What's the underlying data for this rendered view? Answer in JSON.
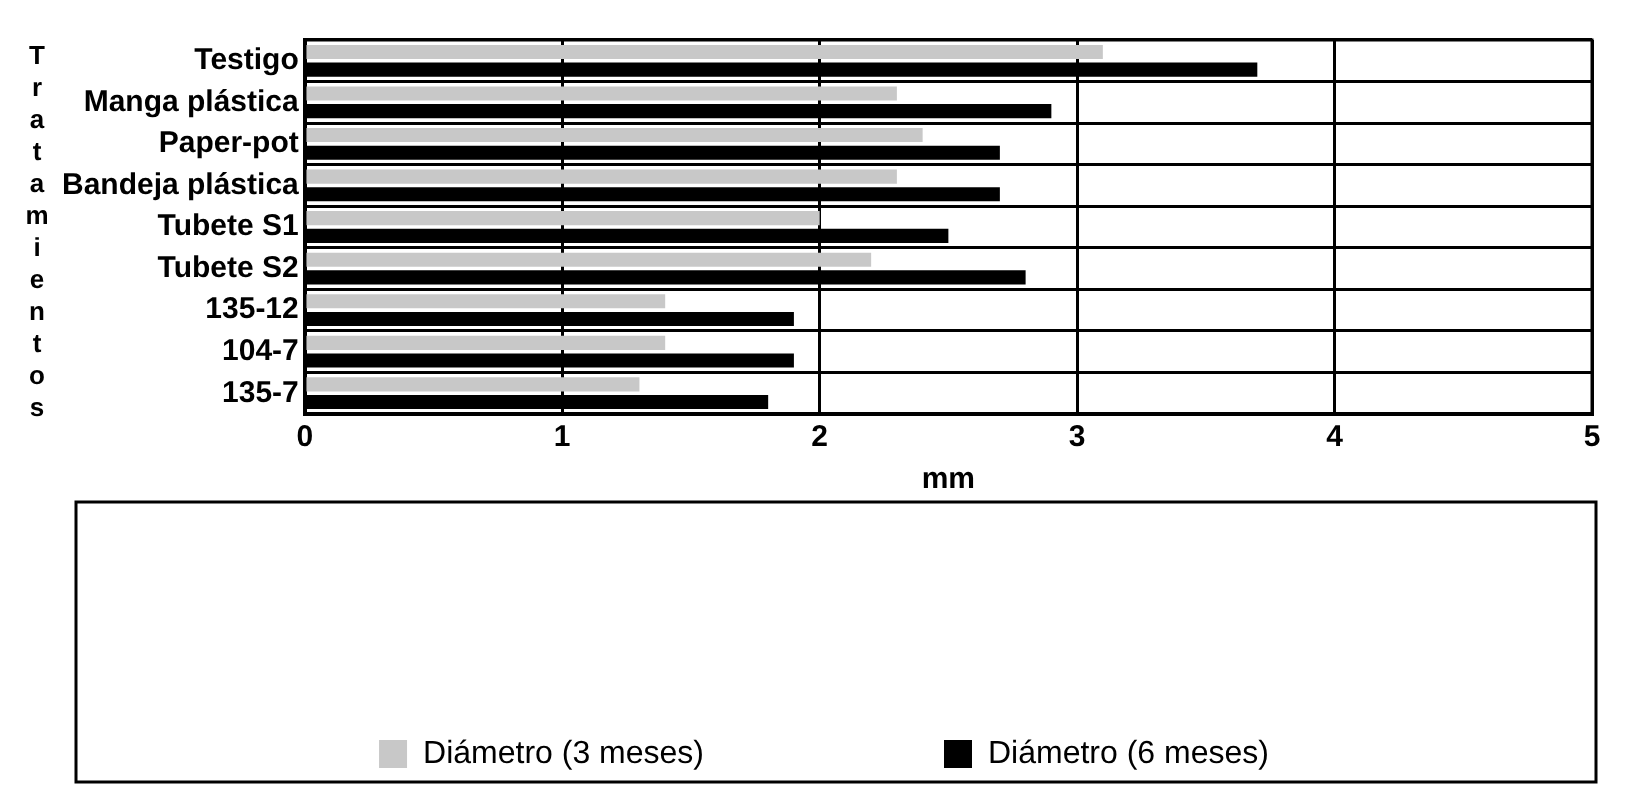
{
  "chart_data": {
    "type": "bar",
    "orientation": "horizontal",
    "xlabel": "mm",
    "ylabel": "Tratamientos",
    "categories": [
      "Testigo",
      "Manga plástica",
      "Paper-pot",
      "Bandeja plástica",
      "Tubete S1",
      "Tubete S2",
      "135-12",
      "104-7",
      "135-7"
    ],
    "series": [
      {
        "name": "Diámetro (3 meses)",
        "color": "#c8c8c8",
        "values": [
          3.1,
          2.3,
          2.4,
          2.3,
          2.0,
          2.2,
          1.4,
          1.4,
          1.3
        ]
      },
      {
        "name": "Diámetro (6 meses)",
        "color": "#000000",
        "values": [
          3.7,
          2.9,
          2.7,
          2.7,
          2.5,
          2.8,
          1.9,
          1.9,
          1.8
        ]
      }
    ],
    "xlim": [
      0,
      5
    ],
    "xticks": [
      0,
      1,
      2,
      3,
      4,
      5
    ],
    "grid": true,
    "legend": "bottom"
  }
}
